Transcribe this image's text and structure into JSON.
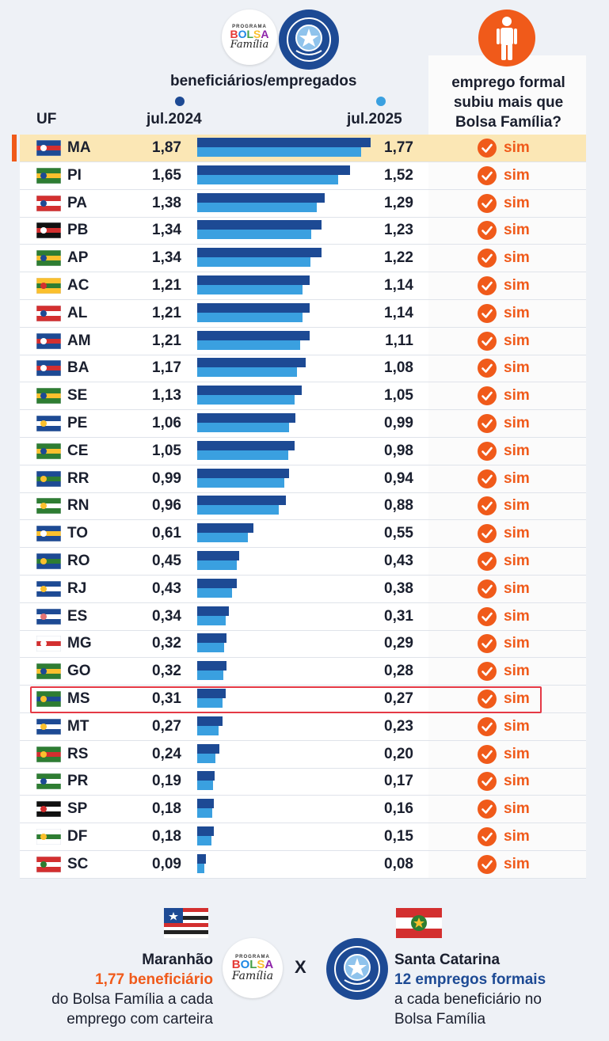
{
  "header": {
    "ratio_title": "beneficiários/empregados",
    "formal_title": "emprego formal subiu mais que Bolsa Família?",
    "uf_label": "UF",
    "col_2024": "jul.2024",
    "col_2025": "jul.2025"
  },
  "logos": {
    "programa": "PROGRAMA",
    "bolsa": "BOLSA",
    "familia": "Família"
  },
  "colors": {
    "bar_2024": "#1d4a94",
    "bar_2025": "#3aa0e0",
    "accent": "#f05a1a",
    "highlight_row": "#fbe7b5",
    "highlight_box": "#e53945"
  },
  "chart_data": {
    "type": "bar",
    "orientation": "horizontal",
    "title": "beneficiários/empregados",
    "categories": [
      "MA",
      "PI",
      "PA",
      "PB",
      "AP",
      "AC",
      "AL",
      "AM",
      "BA",
      "SE",
      "PE",
      "CE",
      "RR",
      "RN",
      "TO",
      "RO",
      "RJ",
      "ES",
      "MG",
      "GO",
      "MS",
      "MT",
      "RS",
      "PR",
      "SP",
      "DF",
      "SC"
    ],
    "series": [
      {
        "name": "jul.2024",
        "values": [
          1.87,
          1.65,
          1.38,
          1.34,
          1.34,
          1.21,
          1.21,
          1.21,
          1.17,
          1.13,
          1.06,
          1.05,
          0.99,
          0.96,
          0.61,
          0.45,
          0.43,
          0.34,
          0.32,
          0.32,
          0.31,
          0.27,
          0.24,
          0.19,
          0.18,
          0.18,
          0.09
        ]
      },
      {
        "name": "jul.2025",
        "values": [
          1.77,
          1.52,
          1.29,
          1.23,
          1.22,
          1.14,
          1.14,
          1.11,
          1.08,
          1.05,
          0.99,
          0.98,
          0.94,
          0.88,
          0.55,
          0.43,
          0.38,
          0.31,
          0.29,
          0.28,
          0.27,
          0.23,
          0.2,
          0.17,
          0.16,
          0.15,
          0.08
        ]
      }
    ],
    "labels_2024": [
      "1,87",
      "1,65",
      "1,38",
      "1,34",
      "1,34",
      "1,21",
      "1,21",
      "1,21",
      "1,17",
      "1,13",
      "1,06",
      "1,05",
      "0,99",
      "0,96",
      "0,61",
      "0,45",
      "0,43",
      "0,34",
      "0,32",
      "0,32",
      "0,31",
      "0,27",
      "0,24",
      "0,19",
      "0,18",
      "0,18",
      "0,09"
    ],
    "labels_2025": [
      "1,77",
      "1,52",
      "1,29",
      "1,23",
      "1,22",
      "1,14",
      "1,14",
      "1,11",
      "1,08",
      "1,05",
      "0,99",
      "0,98",
      "0,94",
      "0,88",
      "0,55",
      "0,43",
      "0,38",
      "0,31",
      "0,29",
      "0,28",
      "0,27",
      "0,23",
      "0,20",
      "0,17",
      "0,16",
      "0,15",
      "0,08"
    ],
    "answer": "sim",
    "highlighted_rows": [
      "MA",
      "MS"
    ]
  },
  "footer": {
    "left_title": "Maranhão",
    "left_highlight": "1,77 beneficiário",
    "left_line3": "do Bolsa Família a cada",
    "left_line4": "emprego com carteira",
    "separator": "X",
    "right_title": "Santa Catarina",
    "right_highlight": "12 empregos formais",
    "right_line3": "a cada beneficiário no",
    "right_line4": "Bolsa Família"
  }
}
